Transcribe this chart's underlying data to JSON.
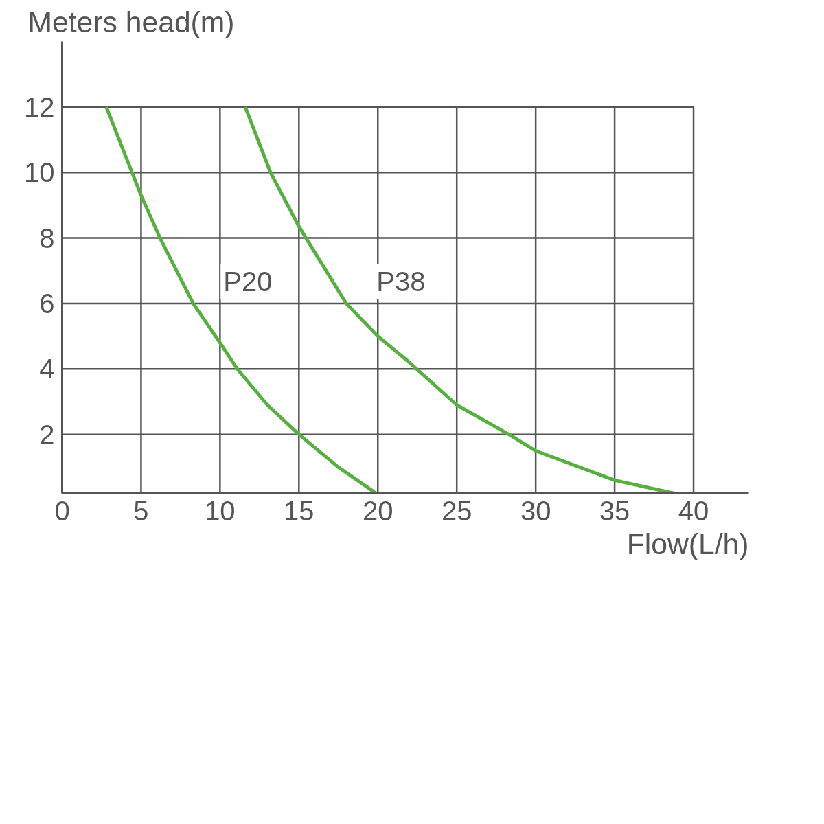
{
  "chart_data": {
    "type": "line",
    "xlabel": "Flow(L/h)",
    "ylabel": "Meters head(m)",
    "xlim": [
      0,
      43.5
    ],
    "ylim": [
      0.2,
      14
    ],
    "xticks": [
      0,
      5,
      10,
      15,
      20,
      25,
      30,
      35,
      40
    ],
    "yticks": [
      2,
      4,
      6,
      8,
      10,
      12
    ],
    "grid": true,
    "marker": "none",
    "line_style": "solid",
    "series": [
      {
        "name": "P20",
        "color": "#55b040",
        "x": [
          2.8,
          5,
          6.2,
          8.3,
          10,
          11.1,
          13,
          15,
          17.5,
          19.9
        ],
        "values": [
          12,
          9.3,
          8,
          6,
          4.8,
          4,
          2.9,
          2,
          1,
          0.2
        ]
      },
      {
        "name": "P38",
        "color": "#55b040",
        "x": [
          11.6,
          13.2,
          15,
          18,
          20,
          22,
          25,
          28.3,
          30,
          35,
          38.8
        ],
        "values": [
          12,
          10,
          8.35,
          6,
          5,
          4.2,
          2.9,
          2,
          1.5,
          0.6,
          0.2
        ]
      }
    ]
  }
}
